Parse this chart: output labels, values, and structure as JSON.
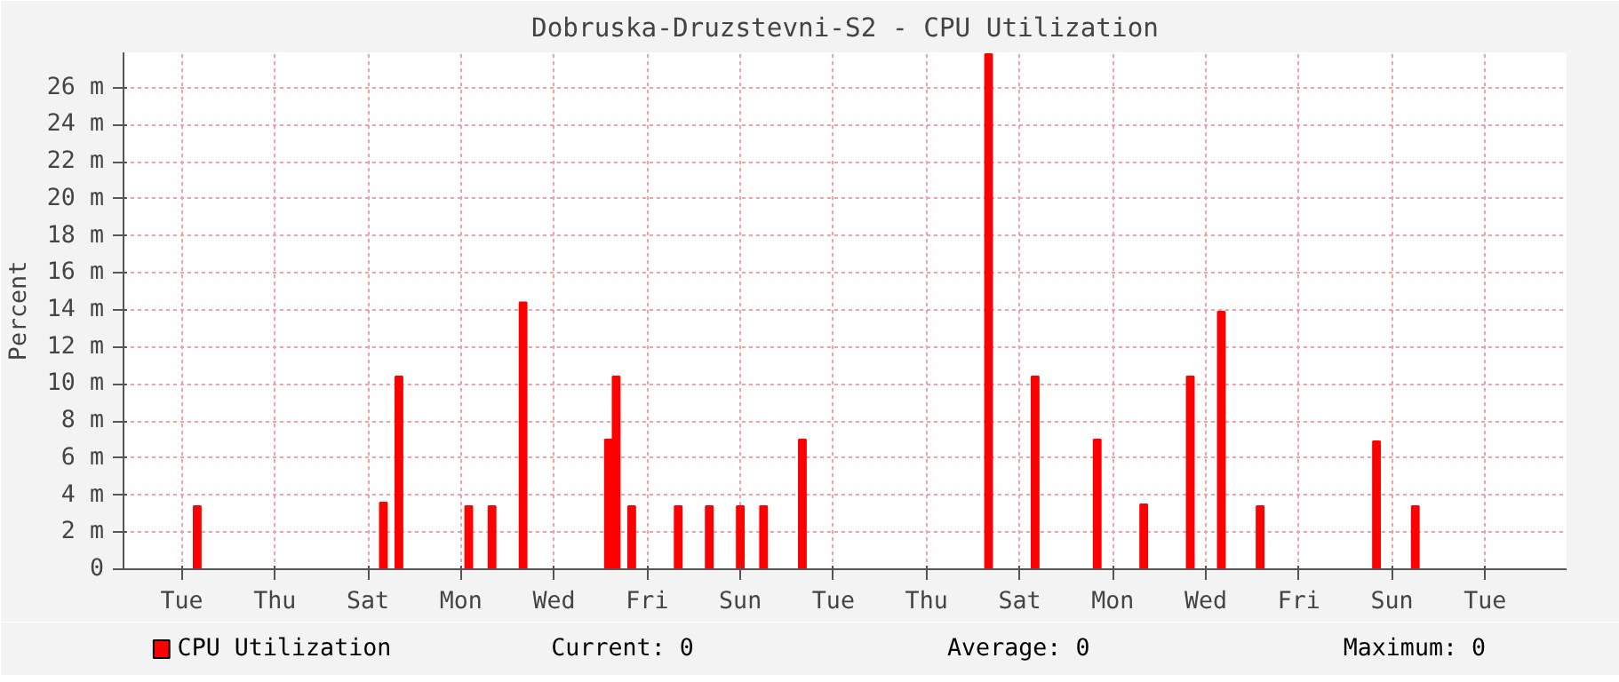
{
  "chart_data": {
    "type": "bar",
    "title": "Dobruska-Druzstevni-S2 - CPU Utilization",
    "ylabel": "Percent",
    "categories": [
      null,
      null,
      null,
      null,
      null,
      null,
      null,
      "Tue",
      null,
      null,
      null,
      null,
      null,
      null,
      null,
      null,
      null,
      null,
      null,
      "Thu",
      null,
      null,
      null,
      null,
      null,
      null,
      null,
      null,
      null,
      null,
      null,
      "Sat",
      null,
      null,
      null,
      null,
      null,
      null,
      null,
      null,
      null,
      null,
      null,
      "Mon",
      null,
      null,
      null,
      null,
      null,
      null,
      null,
      null,
      null,
      null,
      null,
      "Wed",
      null,
      null,
      null,
      null,
      null,
      null,
      null,
      null,
      null,
      null,
      null,
      "Fri",
      null,
      null,
      null,
      null,
      null,
      null,
      null,
      null,
      null,
      null,
      null,
      "Sun",
      null,
      null,
      null,
      null,
      null,
      null,
      null,
      null,
      null,
      null,
      null,
      "Tue",
      null,
      null,
      null,
      null,
      null,
      null,
      null,
      null,
      null,
      null,
      null,
      "Thu",
      null,
      null,
      null,
      null,
      null,
      null,
      null,
      null,
      null,
      null,
      null,
      "Sat",
      null,
      null,
      null,
      null,
      null,
      null,
      null,
      null,
      null,
      null,
      null,
      "Mon",
      null,
      null,
      null,
      null,
      null,
      null,
      null,
      null,
      null,
      null,
      null,
      "Wed",
      null,
      null,
      null,
      null,
      null,
      null,
      null,
      null,
      null,
      null,
      null,
      "Fri",
      null,
      null,
      null,
      null,
      null,
      null,
      null,
      null,
      null,
      null,
      null,
      "Sun",
      null,
      null,
      null,
      null,
      null,
      null,
      null,
      null,
      null,
      null,
      null,
      "Tue",
      null,
      null,
      null,
      null,
      null,
      null,
      null,
      null,
      null,
      null
    ],
    "series": [
      {
        "name": "CPU Utilization",
        "color": "#ff0000",
        "values": [
          null,
          null,
          null,
          null,
          null,
          null,
          null,
          null,
          null,
          3.4,
          null,
          null,
          null,
          null,
          null,
          null,
          null,
          null,
          null,
          null,
          null,
          null,
          null,
          null,
          null,
          null,
          null,
          null,
          null,
          null,
          null,
          null,
          null,
          3.6,
          null,
          10.4,
          null,
          null,
          null,
          null,
          null,
          null,
          null,
          null,
          3.4,
          null,
          null,
          3.4,
          null,
          null,
          null,
          14.4,
          null,
          null,
          null,
          null,
          null,
          null,
          null,
          null,
          null,
          null,
          7.0,
          10.4,
          null,
          3.4,
          null,
          null,
          null,
          null,
          null,
          3.4,
          null,
          null,
          null,
          3.4,
          null,
          null,
          null,
          3.4,
          null,
          null,
          3.4,
          null,
          null,
          null,
          null,
          7.0,
          null,
          null,
          null,
          null,
          null,
          null,
          null,
          null,
          null,
          null,
          null,
          null,
          null,
          null,
          null,
          null,
          null,
          null,
          null,
          null,
          null,
          null,
          null,
          27.8,
          null,
          null,
          null,
          null,
          null,
          10.4,
          null,
          null,
          null,
          null,
          null,
          null,
          null,
          7.0,
          null,
          null,
          null,
          null,
          null,
          3.5,
          null,
          null,
          null,
          null,
          null,
          10.4,
          null,
          null,
          null,
          13.9,
          null,
          null,
          null,
          null,
          3.4,
          null,
          null,
          null,
          null,
          null,
          null,
          null,
          null,
          null,
          null,
          null,
          null,
          null,
          null,
          6.9,
          null,
          null,
          null,
          null,
          3.4,
          null,
          null,
          null,
          null,
          null,
          null,
          null,
          null,
          null,
          null,
          null,
          null,
          null,
          null,
          null,
          null,
          null,
          null,
          null
        ]
      }
    ],
    "ylim": [
      0,
      27.9
    ],
    "yticks": [
      0,
      {
        "value": 2,
        "label": "2 m"
      },
      {
        "value": 4,
        "label": "4 m"
      },
      {
        "value": 6,
        "label": "6 m"
      },
      {
        "value": 8,
        "label": "8 m"
      },
      {
        "value": 10,
        "label": "10 m"
      },
      {
        "value": 12,
        "label": "12 m"
      },
      {
        "value": 14,
        "label": "14 m"
      },
      {
        "value": 16,
        "label": "16 m"
      },
      {
        "value": 18,
        "label": "18 m"
      },
      {
        "value": 20,
        "label": "20 m"
      },
      {
        "value": 22,
        "label": "22 m"
      },
      {
        "value": 24,
        "label": "24 m"
      },
      {
        "value": 26,
        "label": "26 m"
      }
    ],
    "grid": true,
    "legend": "bottom",
    "annotations": [
      "Current:          0",
      "Average:          0",
      "Maximum:          0"
    ]
  }
}
